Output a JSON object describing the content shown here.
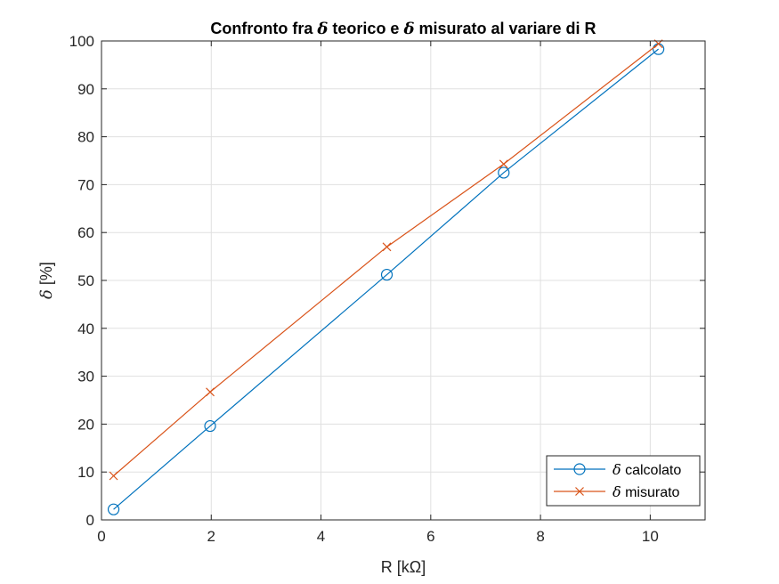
{
  "chart_data": {
    "type": "line",
    "title": "Confronto fra δ teorico e δ misurato al variare di R",
    "xlabel": "R [kΩ]",
    "ylabel": "δ [%]",
    "xlim": [
      0,
      11
    ],
    "ylim": [
      0,
      100
    ],
    "xticks": [
      0,
      2,
      4,
      6,
      8,
      10
    ],
    "yticks": [
      0,
      10,
      20,
      30,
      40,
      50,
      60,
      70,
      80,
      90,
      100
    ],
    "grid": true,
    "legend_position": "bottom-right",
    "series": [
      {
        "name": "δ calcolato",
        "color": "#0072BD",
        "marker": "circle",
        "x": [
          0.22,
          1.98,
          5.2,
          7.33,
          10.15
        ],
        "y": [
          2.2,
          19.6,
          51.2,
          72.5,
          98.3
        ]
      },
      {
        "name": "δ misurato",
        "color": "#D95319",
        "marker": "x",
        "x": [
          0.22,
          1.98,
          5.2,
          7.33,
          10.15
        ],
        "y": [
          9.2,
          26.7,
          57.0,
          74.3,
          99.4
        ]
      }
    ]
  }
}
